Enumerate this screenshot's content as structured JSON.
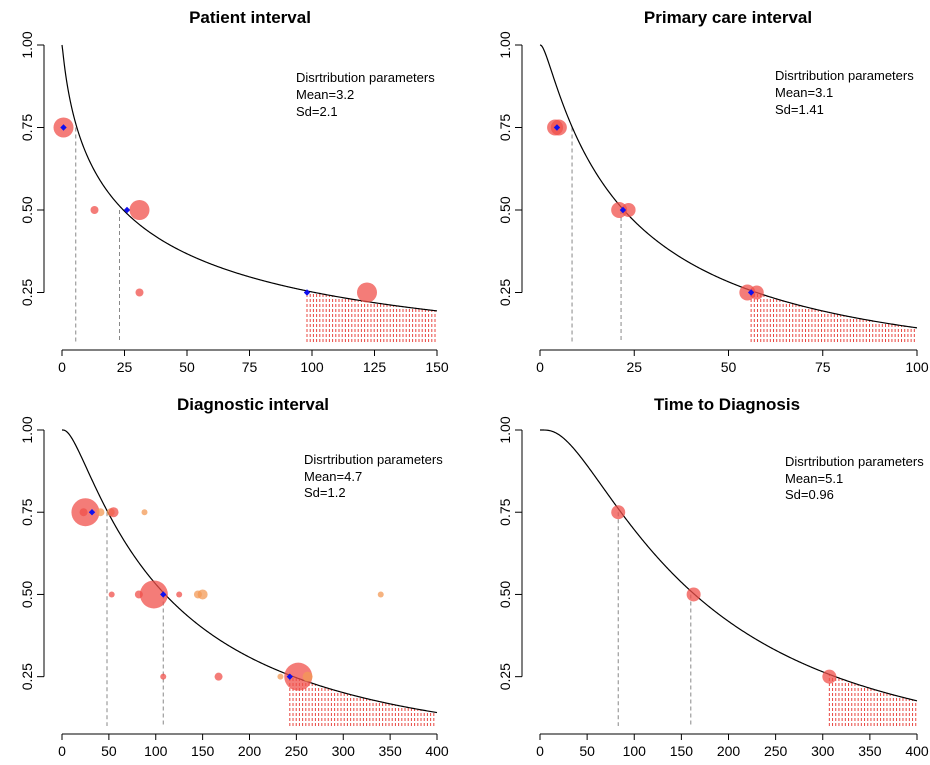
{
  "chart_data": [
    {
      "type": "scatter",
      "title": "Patient interval",
      "xlim": [
        0,
        150
      ],
      "ylim": [
        0.1,
        1.0
      ],
      "x_ticks": [
        0,
        25,
        50,
        75,
        100,
        125,
        150
      ],
      "y_ticks": [
        0.25,
        0.5,
        0.75,
        1.0
      ],
      "x_tick_labels": [
        "0",
        "25",
        "50",
        "75",
        "100",
        "125",
        "150"
      ],
      "y_tick_labels": [
        "0.25",
        "0.50",
        "0.75",
        "1.00"
      ],
      "annotation": [
        "Disrtribution parameters",
        "Mean=3.2",
        "Sd=2.1"
      ],
      "lognormal": {
        "meanlog": 3.2,
        "sdlog": 2.1
      },
      "quantile_markers": [
        {
          "x": 0.6,
          "y": 0.75
        },
        {
          "x": 26,
          "y": 0.5
        },
        {
          "x": 98,
          "y": 0.25
        }
      ],
      "dashed_lines": [
        {
          "x": 5.5,
          "y": 0.75
        },
        {
          "x": 23,
          "y": 0.5
        }
      ],
      "tail_from": 98,
      "points": [
        {
          "x": 0.6,
          "y": 0.75,
          "size": 10,
          "color": "#f0504b"
        },
        {
          "x": 13,
          "y": 0.5,
          "size": 4,
          "color": "#f0504b"
        },
        {
          "x": 31,
          "y": 0.5,
          "size": 10,
          "color": "#f0504b"
        },
        {
          "x": 31,
          "y": 0.25,
          "size": 4,
          "color": "#f0504b"
        },
        {
          "x": 122,
          "y": 0.25,
          "size": 10,
          "color": "#f0504b"
        }
      ]
    },
    {
      "type": "scatter",
      "title": "Primary care interval",
      "xlim": [
        0,
        100
      ],
      "ylim": [
        0.1,
        1.0
      ],
      "x_ticks": [
        0,
        25,
        50,
        75,
        100
      ],
      "y_ticks": [
        0.25,
        0.5,
        0.75,
        1.0
      ],
      "x_tick_labels": [
        "0",
        "25",
        "50",
        "75",
        "100"
      ],
      "y_tick_labels": [
        "0.25",
        "0.50",
        "0.75",
        "1.00"
      ],
      "annotation": [
        "Disrtribution parameters",
        "Mean=3.1",
        "Sd=1.41"
      ],
      "lognormal": {
        "meanlog": 3.1,
        "sdlog": 1.41
      },
      "quantile_markers": [
        {
          "x": 4.5,
          "y": 0.75
        },
        {
          "x": 22,
          "y": 0.5
        },
        {
          "x": 56,
          "y": 0.25
        }
      ],
      "dashed_lines": [
        {
          "x": 8.5,
          "y": 0.75
        },
        {
          "x": 21.5,
          "y": 0.5
        }
      ],
      "tail_from": 56,
      "points": [
        {
          "x": 4,
          "y": 0.75,
          "size": 8,
          "color": "#f0504b"
        },
        {
          "x": 5,
          "y": 0.75,
          "size": 8,
          "color": "#f0504b"
        },
        {
          "x": 21,
          "y": 0.5,
          "size": 8,
          "color": "#f0504b"
        },
        {
          "x": 23.5,
          "y": 0.5,
          "size": 7,
          "color": "#f0504b"
        },
        {
          "x": 55,
          "y": 0.25,
          "size": 8,
          "color": "#f0504b"
        },
        {
          "x": 57.5,
          "y": 0.25,
          "size": 7,
          "color": "#f0504b"
        }
      ]
    },
    {
      "type": "scatter",
      "title": "Diagnostic interval",
      "xlim": [
        0,
        400
      ],
      "ylim": [
        0.1,
        1.0
      ],
      "x_ticks": [
        0,
        50,
        100,
        150,
        200,
        250,
        300,
        350,
        400
      ],
      "y_ticks": [
        0.25,
        0.5,
        0.75,
        1.0
      ],
      "x_tick_labels": [
        "0",
        "50",
        "100",
        "150",
        "200",
        "250",
        "300",
        "350",
        "400"
      ],
      "y_tick_labels": [
        "0.25",
        "0.50",
        "0.75",
        "1.00"
      ],
      "annotation": [
        "Disrtribution parameters",
        "Mean=4.7",
        "Sd=1.2"
      ],
      "lognormal": {
        "meanlog": 4.7,
        "sdlog": 1.2
      },
      "quantile_markers": [
        {
          "x": 32,
          "y": 0.75
        },
        {
          "x": 108,
          "y": 0.5
        },
        {
          "x": 243,
          "y": 0.25
        }
      ],
      "dashed_lines": [
        {
          "x": 48,
          "y": 0.75
        },
        {
          "x": 108,
          "y": 0.5
        }
      ],
      "tail_from": 243,
      "points": [
        {
          "x": 25,
          "y": 0.75,
          "size": 14,
          "color": "#f0504b"
        },
        {
          "x": 23,
          "y": 0.75,
          "size": 4,
          "color": "#f0504b"
        },
        {
          "x": 41,
          "y": 0.75,
          "size": 4,
          "color": "#f39a55"
        },
        {
          "x": 52,
          "y": 0.75,
          "size": 4,
          "color": "#f39a55"
        },
        {
          "x": 55,
          "y": 0.75,
          "size": 5,
          "color": "#f0504b"
        },
        {
          "x": 88,
          "y": 0.75,
          "size": 3,
          "color": "#f39a55"
        },
        {
          "x": 53,
          "y": 0.5,
          "size": 3,
          "color": "#f0504b"
        },
        {
          "x": 82,
          "y": 0.5,
          "size": 4,
          "color": "#f0504b"
        },
        {
          "x": 98,
          "y": 0.5,
          "size": 14,
          "color": "#f0504b"
        },
        {
          "x": 125,
          "y": 0.5,
          "size": 3,
          "color": "#f0504b"
        },
        {
          "x": 145,
          "y": 0.5,
          "size": 4,
          "color": "#f39a55"
        },
        {
          "x": 150,
          "y": 0.5,
          "size": 5,
          "color": "#f39a55"
        },
        {
          "x": 340,
          "y": 0.5,
          "size": 3,
          "color": "#f39a55"
        },
        {
          "x": 108,
          "y": 0.25,
          "size": 3,
          "color": "#f0504b"
        },
        {
          "x": 167,
          "y": 0.25,
          "size": 4,
          "color": "#f0504b"
        },
        {
          "x": 233,
          "y": 0.25,
          "size": 3,
          "color": "#f39a55"
        },
        {
          "x": 252,
          "y": 0.25,
          "size": 14,
          "color": "#f0504b"
        },
        {
          "x": 262,
          "y": 0.25,
          "size": 5,
          "color": "#f39a55"
        }
      ]
    },
    {
      "type": "scatter",
      "title": "Time to Diagnosis",
      "xlim": [
        0,
        400
      ],
      "ylim": [
        0.1,
        1.0
      ],
      "x_ticks": [
        0,
        50,
        100,
        150,
        200,
        250,
        300,
        350,
        400
      ],
      "y_ticks": [
        0.25,
        0.5,
        0.75,
        1.0
      ],
      "x_tick_labels": [
        "0",
        "50",
        "100",
        "150",
        "200",
        "250",
        "300",
        "350",
        "400"
      ],
      "y_tick_labels": [
        "0.25",
        "0.50",
        "0.75",
        "1.00"
      ],
      "annotation": [
        "Disrtribution parameters",
        "Mean=5.1",
        "Sd=0.96"
      ],
      "lognormal": {
        "meanlog": 5.1,
        "sdlog": 0.96
      },
      "quantile_markers": [],
      "dashed_lines": [
        {
          "x": 83,
          "y": 0.75
        },
        {
          "x": 160,
          "y": 0.5
        }
      ],
      "tail_from": 307,
      "points": [
        {
          "x": 83,
          "y": 0.75,
          "size": 7,
          "color": "#f0504b"
        },
        {
          "x": 163,
          "y": 0.5,
          "size": 7,
          "color": "#f0504b"
        },
        {
          "x": 307,
          "y": 0.25,
          "size": 7,
          "color": "#f0504b"
        }
      ]
    }
  ]
}
